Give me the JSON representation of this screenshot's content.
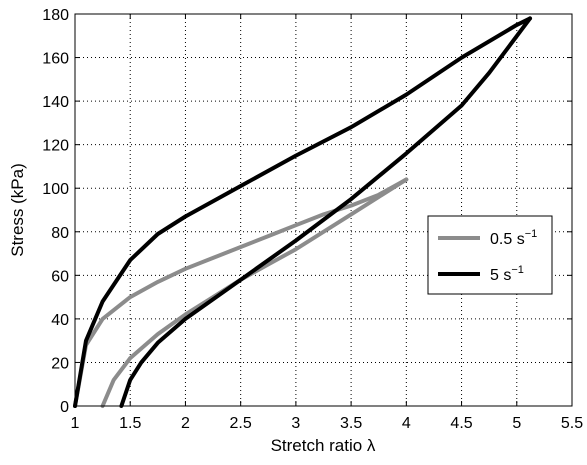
{
  "chart_data": {
    "type": "line",
    "title": "",
    "xlabel": "Stretch ratio λ",
    "ylabel": "Stress (kPa)",
    "xlim": [
      1,
      5.5
    ],
    "ylim": [
      0,
      180
    ],
    "x_ticks": [
      "1",
      "1.5",
      "2",
      "2.5",
      "3",
      "3.5",
      "4",
      "4.5",
      "5",
      "5.5"
    ],
    "y_ticks": [
      "0",
      "20",
      "40",
      "60",
      "80",
      "100",
      "120",
      "140",
      "160",
      "180"
    ],
    "grid": true,
    "grid_style": "dotted",
    "legend_position": "right",
    "series": [
      {
        "name": "0.5 s",
        "name_superscript": "−1",
        "color": "#8c8c8c",
        "loading": {
          "x": [
            1.0,
            1.1,
            1.25,
            1.5,
            1.75,
            2.0,
            2.25,
            2.5,
            2.75,
            3.0,
            3.25,
            3.5,
            3.75,
            4.0
          ],
          "y": [
            0,
            28,
            40,
            50,
            57,
            63,
            68,
            73,
            78,
            83,
            88,
            92,
            97,
            104
          ]
        },
        "unloading": {
          "x": [
            4.0,
            3.75,
            3.5,
            3.25,
            3.0,
            2.75,
            2.5,
            2.25,
            2.0,
            1.75,
            1.5,
            1.35,
            1.25
          ],
          "y": [
            104,
            96,
            88,
            80,
            72,
            65,
            58,
            50,
            42,
            33,
            22,
            12,
            0
          ]
        }
      },
      {
        "name": "5 s",
        "name_superscript": "−1",
        "color": "#000000",
        "loading": {
          "x": [
            1.0,
            1.1,
            1.25,
            1.5,
            1.75,
            2.0,
            2.5,
            3.0,
            3.5,
            4.0,
            4.5,
            5.0,
            5.12
          ],
          "y": [
            0,
            30,
            48,
            67,
            79,
            87,
            101,
            115,
            128,
            143,
            160,
            175,
            178
          ]
        },
        "unloading": {
          "x": [
            5.12,
            4.75,
            4.5,
            4.0,
            3.5,
            3.0,
            2.5,
            2.0,
            1.75,
            1.6,
            1.5,
            1.42
          ],
          "y": [
            178,
            153,
            138,
            116,
            95,
            76,
            58,
            40,
            29,
            20,
            12,
            0
          ]
        }
      }
    ]
  }
}
